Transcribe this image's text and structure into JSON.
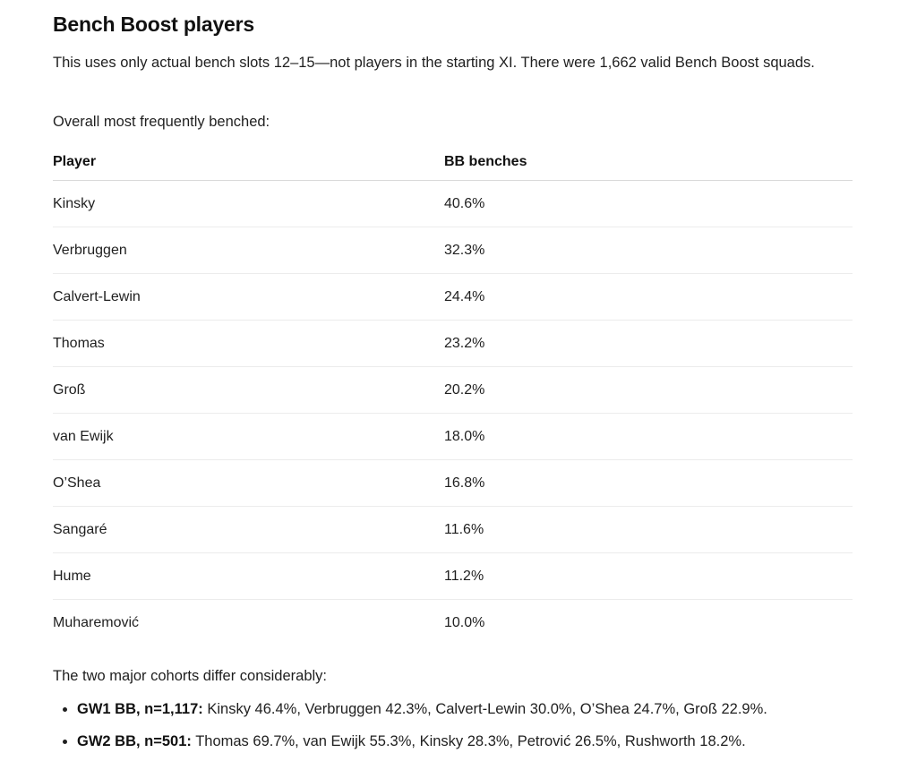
{
  "heading": "Bench Boost players",
  "intro": "This uses only actual bench slots 12–15—not players in the starting XI. There were 1,662 valid Bench Boost squads.",
  "lead": "Overall most frequently benched:",
  "table": {
    "headers": [
      "Player",
      "BB benches"
    ],
    "rows": [
      {
        "player": "Kinsky",
        "pct": "40.6%"
      },
      {
        "player": "Verbruggen",
        "pct": "32.3%"
      },
      {
        "player": "Calvert-Lewin",
        "pct": "24.4%"
      },
      {
        "player": "Thomas",
        "pct": "23.2%"
      },
      {
        "player": "Groß",
        "pct": "20.2%"
      },
      {
        "player": "van Ewijk",
        "pct": "18.0%"
      },
      {
        "player": "O’Shea",
        "pct": "16.8%"
      },
      {
        "player": "Sangaré",
        "pct": "11.6%"
      },
      {
        "player": "Hume",
        "pct": "11.2%"
      },
      {
        "player": "Muharemović",
        "pct": "10.0%"
      }
    ]
  },
  "summary": "The two major cohorts differ considerably:",
  "cohorts": [
    {
      "label": "GW1 BB, n=1,117:",
      "text": " Kinsky 46.4%, Verbruggen 42.3%, Calvert-Lewin 30.0%, O’Shea 24.7%, Groß 22.9%."
    },
    {
      "label": "GW2 BB, n=501:",
      "text": " Thomas 69.7%, van Ewijk 55.3%, Kinsky 28.3%, Petrović 26.5%, Rushworth 18.2%."
    }
  ]
}
